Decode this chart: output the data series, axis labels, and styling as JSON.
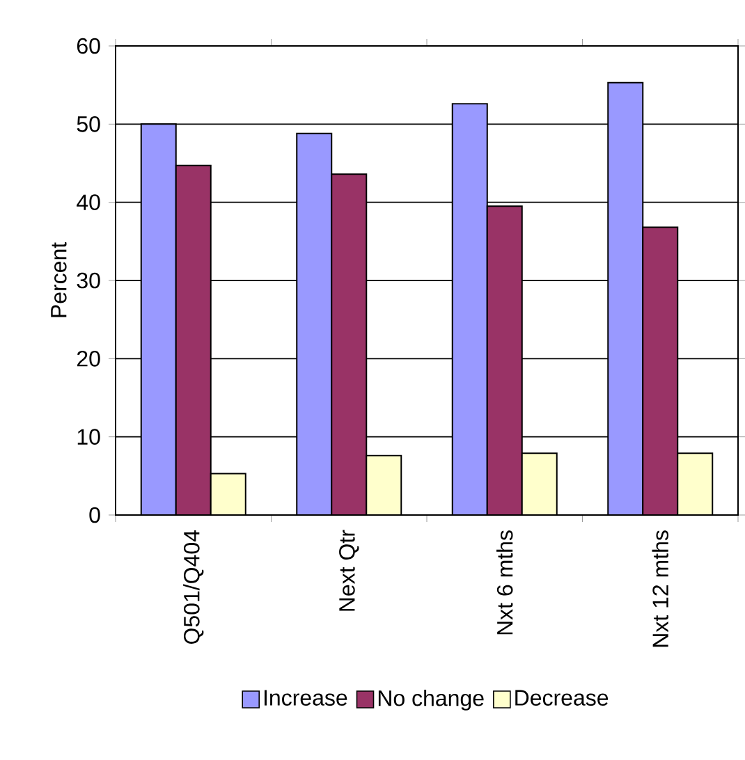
{
  "chart_data": {
    "type": "bar",
    "ylabel": "Percent",
    "categories": [
      "Q501/Q404",
      "Next Qtr",
      "Nxt 6 mths",
      "Nxt 12 mths"
    ],
    "series": [
      {
        "name": "Increase",
        "color": "#9999ff",
        "values": [
          50.0,
          48.8,
          52.6,
          55.3
        ]
      },
      {
        "name": "No change",
        "color": "#993366",
        "values": [
          44.7,
          43.6,
          39.5,
          36.8
        ]
      },
      {
        "name": "Decrease",
        "color": "#ffffcc",
        "values": [
          5.3,
          7.6,
          7.9,
          7.9
        ]
      }
    ],
    "ylim": [
      0,
      60
    ],
    "yticks": [
      0,
      10,
      20,
      30,
      40,
      50,
      60
    ],
    "grid": "y",
    "legend": "bottom"
  }
}
